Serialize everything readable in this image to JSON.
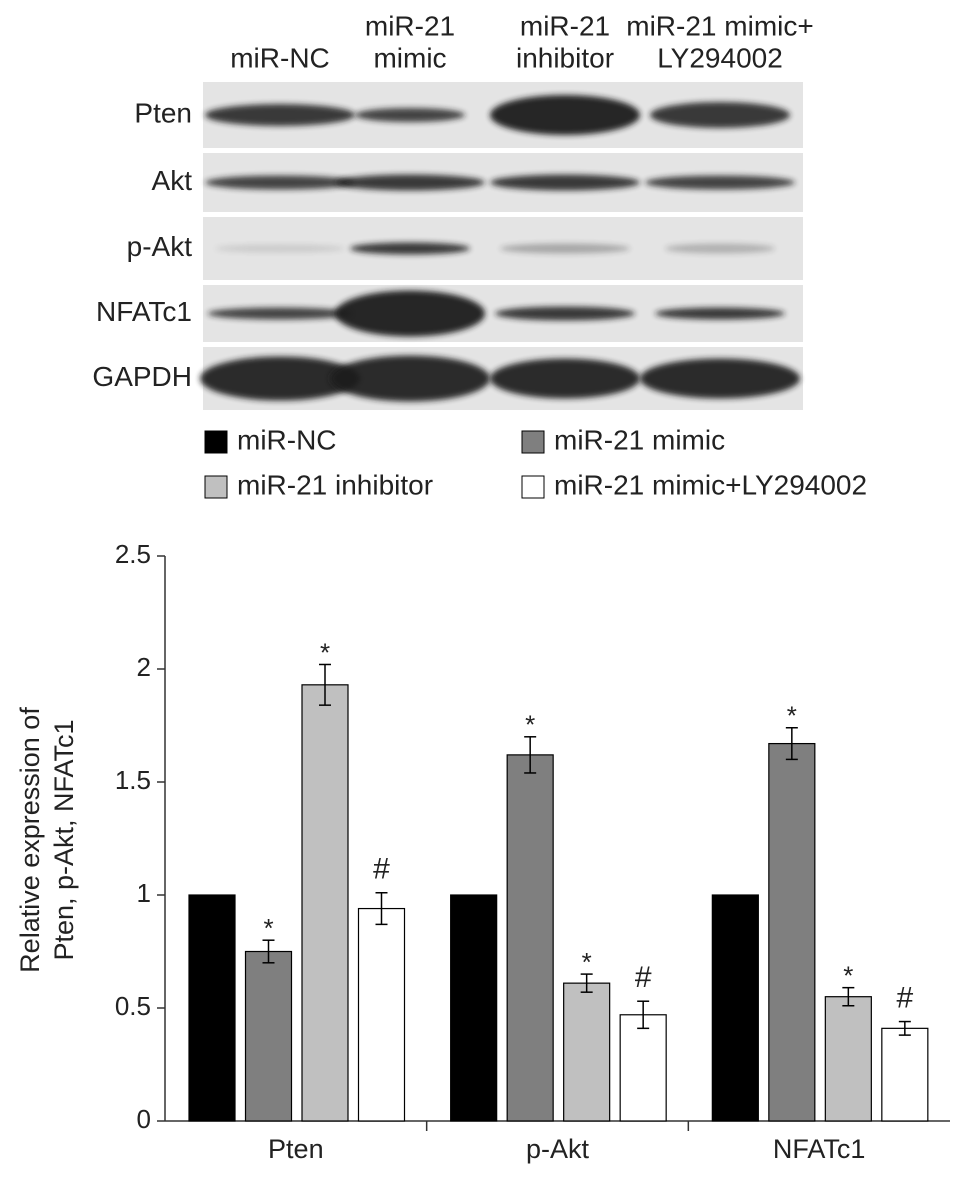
{
  "blot": {
    "lanes": [
      [
        "miR-NC"
      ],
      [
        "miR-21",
        "mimic"
      ],
      [
        "miR-21",
        "inhibitor"
      ],
      [
        "miR-21 mimic+",
        "LY294002"
      ]
    ],
    "rows": [
      "Pten",
      "Akt",
      "p-Akt",
      "NFATc1",
      "GAPDH"
    ]
  },
  "chart_data": {
    "type": "bar",
    "ylabel": [
      "Relative expression of",
      "Pten, p-Akt, NFATc1"
    ],
    "categories": [
      "Pten",
      "p-Akt",
      "NFATc1"
    ],
    "series": [
      {
        "name": "miR-NC",
        "color": "#000000",
        "values": [
          1,
          1,
          1
        ],
        "errors": [
          0,
          0,
          0
        ],
        "significance": [
          null,
          null,
          null
        ]
      },
      {
        "name": "miR-21 mimic",
        "color": "#7f7f7f",
        "values": [
          0.75,
          1.62,
          1.67
        ],
        "errors": [
          0.05,
          0.08,
          0.07
        ],
        "significance": [
          "*",
          "*",
          "*"
        ]
      },
      {
        "name": "miR-21 inhibitor",
        "color": "#c0c0c0",
        "values": [
          1.93,
          0.61,
          0.55
        ],
        "errors": [
          0.09,
          0.04,
          0.04
        ],
        "significance": [
          "*",
          "*",
          "*"
        ]
      },
      {
        "name": "miR-21 mimic+LY294002",
        "color": "#ffffff",
        "values": [
          0.94,
          0.47,
          0.41
        ],
        "errors": [
          0.07,
          0.06,
          0.03
        ],
        "significance": [
          "#",
          "#",
          "#"
        ]
      }
    ],
    "ylim": [
      0,
      2.5
    ],
    "yticks": [
      0,
      0.5,
      1,
      1.5,
      2,
      2.5
    ]
  }
}
